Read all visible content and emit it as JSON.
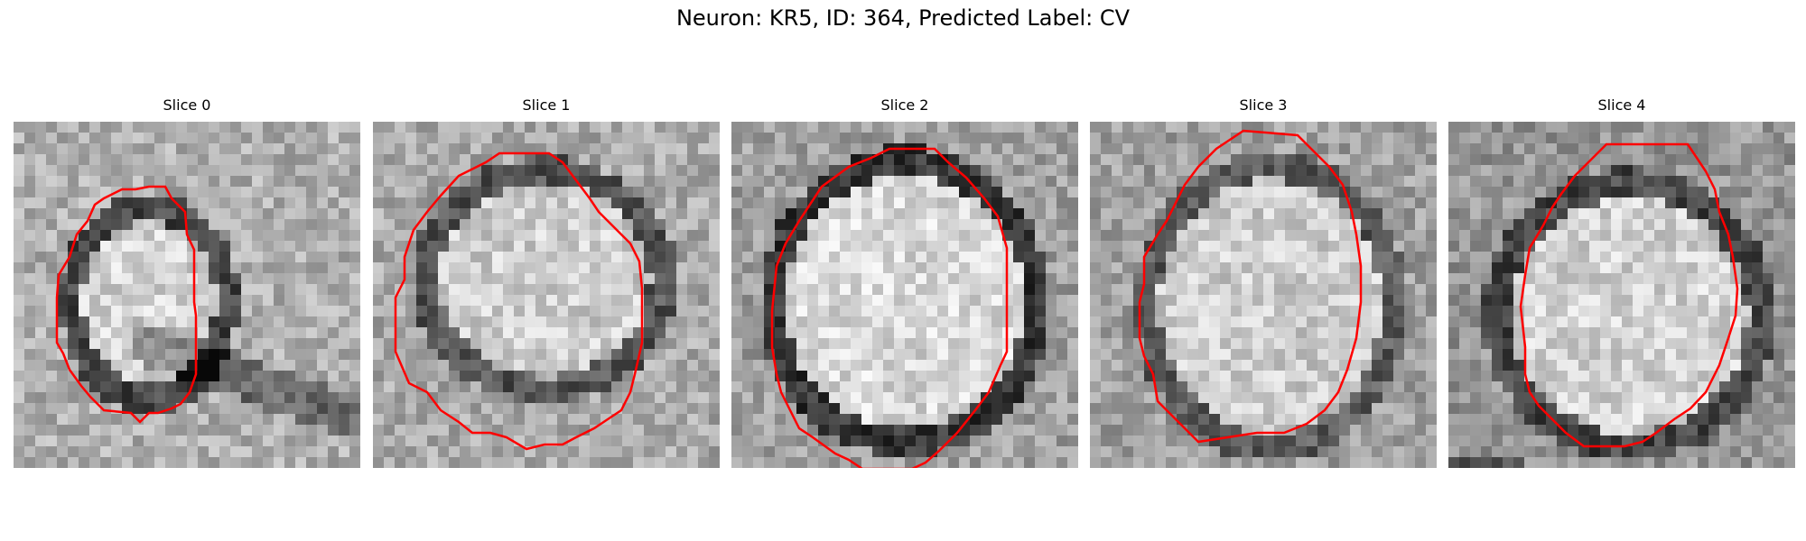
{
  "figure": {
    "title": "Neuron: KR5, ID: 364, Predicted Label: CV"
  },
  "panels": [
    {
      "title": "Slice 0"
    },
    {
      "title": "Slice 1"
    },
    {
      "title": "Slice 2"
    },
    {
      "title": "Slice 3"
    },
    {
      "title": "Slice 4"
    }
  ],
  "colors": {
    "contour": "#ff0000",
    "background": "#ffffff"
  }
}
